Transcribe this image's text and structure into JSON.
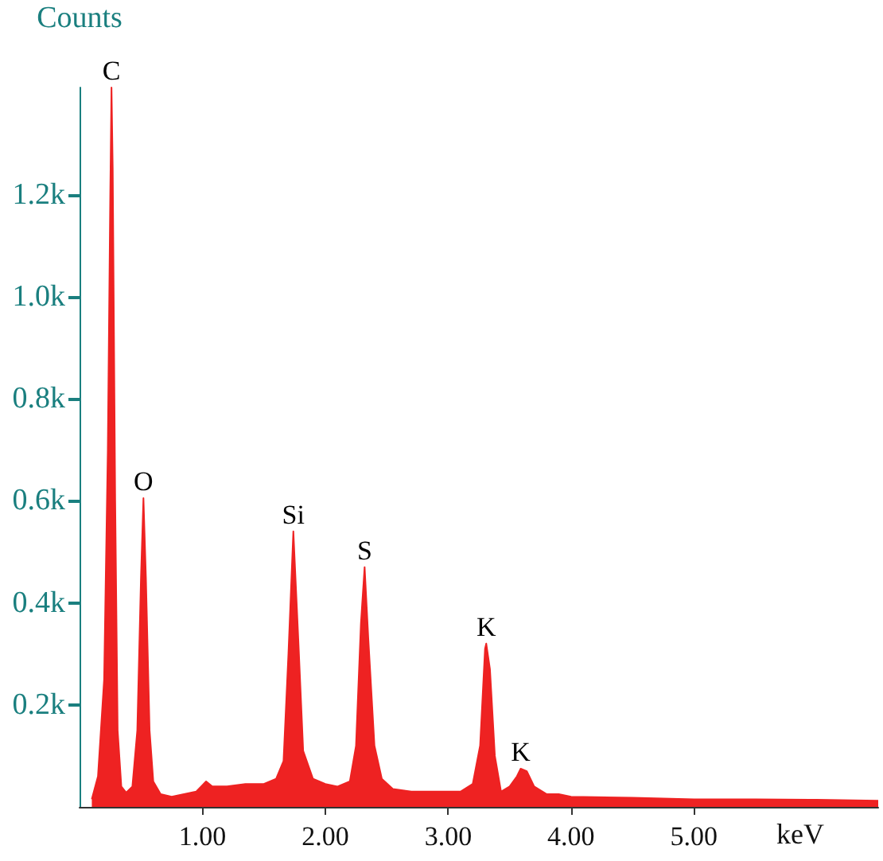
{
  "chart_data": {
    "type": "area",
    "xlabel": "keV",
    "ylabel": "Counts",
    "x": [
      0.1,
      0.15,
      0.2,
      0.23,
      0.25,
      0.26,
      0.27,
      0.29,
      0.31,
      0.34,
      0.38,
      0.43,
      0.47,
      0.5,
      0.52,
      0.54,
      0.57,
      0.6,
      0.66,
      0.75,
      0.85,
      0.95,
      1.03,
      1.08,
      1.2,
      1.35,
      1.5,
      1.6,
      1.66,
      1.7,
      1.74,
      1.78,
      1.82,
      1.9,
      2.0,
      2.1,
      2.2,
      2.25,
      2.29,
      2.32,
      2.35,
      2.4,
      2.46,
      2.55,
      2.7,
      2.9,
      3.1,
      3.2,
      3.26,
      3.3,
      3.31,
      3.34,
      3.38,
      3.43,
      3.5,
      3.56,
      3.59,
      3.64,
      3.7,
      3.8,
      3.9,
      4.0,
      4.5,
      5.0,
      5.5,
      6.0,
      6.5
    ],
    "series": [
      {
        "color": "#ee2222",
        "values": [
          15,
          60,
          250,
          700,
          1200,
          1410,
          1250,
          600,
          150,
          40,
          28,
          40,
          150,
          450,
          605,
          450,
          150,
          50,
          25,
          20,
          25,
          30,
          50,
          40,
          40,
          45,
          45,
          55,
          90,
          300,
          540,
          330,
          110,
          55,
          45,
          40,
          50,
          120,
          360,
          470,
          330,
          120,
          55,
          35,
          30,
          30,
          30,
          45,
          120,
          310,
          320,
          270,
          100,
          30,
          40,
          60,
          75,
          70,
          40,
          25,
          25,
          20,
          18,
          15,
          15,
          14,
          12
        ]
      }
    ],
    "xlim": [
      0,
      6.5
    ],
    "ylim": [
      0,
      1410
    ],
    "xticks": [
      {
        "value": 1,
        "label": "1.00"
      },
      {
        "value": 2,
        "label": "2.00"
      },
      {
        "value": 3,
        "label": "3.00"
      },
      {
        "value": 4,
        "label": "4.00"
      },
      {
        "value": 5,
        "label": "5.00"
      }
    ],
    "yticks": [
      {
        "value": 200,
        "label": "0.2k"
      },
      {
        "value": 400,
        "label": "0.4k"
      },
      {
        "value": 600,
        "label": "0.6k"
      },
      {
        "value": 800,
        "label": "0.8k"
      },
      {
        "value": 1000,
        "label": "1.0k"
      },
      {
        "value": 1200,
        "label": "1.2k"
      }
    ],
    "annotations": [
      {
        "text": "C",
        "x": 0.26,
        "y": 1410
      },
      {
        "text": "O",
        "x": 0.52,
        "y": 605
      },
      {
        "text": "Si",
        "x": 1.74,
        "y": 540
      },
      {
        "text": "S",
        "x": 2.32,
        "y": 470
      },
      {
        "text": "K",
        "x": 3.31,
        "y": 320
      },
      {
        "text": "K",
        "x": 3.59,
        "y": 75
      }
    ]
  }
}
